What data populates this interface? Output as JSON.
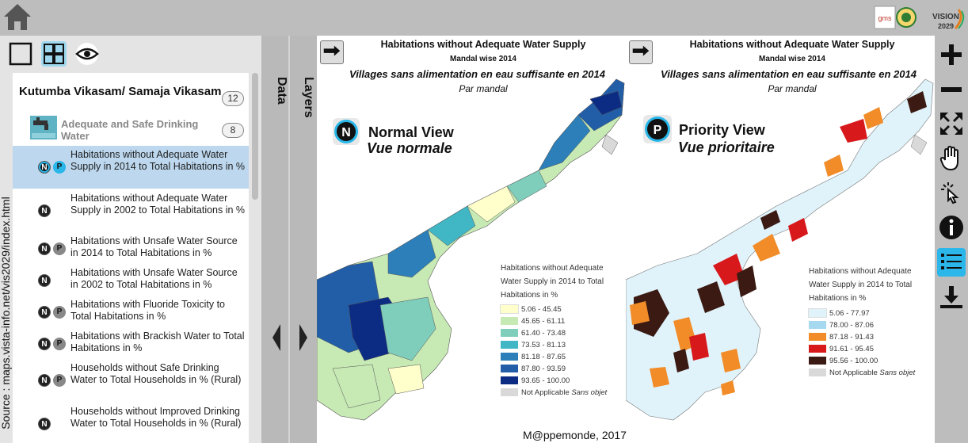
{
  "source_credit": "Source : maps.vista-info.net/vis2029/index.html",
  "logos": {
    "gms_text": "gms",
    "vision_text": "VISION",
    "vision_year": "2029"
  },
  "tabs": {
    "data": "Data",
    "layers": "Layers"
  },
  "group": {
    "title": "Kutumba Vikasam/ Samaja Vikasam",
    "count": "12"
  },
  "subgroup": {
    "title": "Adequate and Safe Drinking Water",
    "count": "8"
  },
  "items": [
    {
      "label": "Habitations without Adequate Water Supply in 2014 to Total Habitations in %",
      "badges": [
        "N",
        "P"
      ],
      "selected": true
    },
    {
      "label": "Habitations without Adequate Water Supply in 2002 to Total Habitations in %",
      "badges": [
        "N"
      ],
      "selected": false
    },
    {
      "label": "Habitations with Unsafe Water Source in 2014 to Total Habitations in %",
      "badges": [
        "N",
        "P"
      ],
      "selected": false
    },
    {
      "label": "Habitations with Unsafe Water Source in 2002 to Total Habitations in %",
      "badges": [
        "N"
      ],
      "selected": false
    },
    {
      "label": "Habitations with Fluoride Toxicity to Total Habitations in %",
      "badges": [
        "N",
        "P"
      ],
      "selected": false
    },
    {
      "label": "Habitations with Brackish Water to Total Habitations in %",
      "badges": [
        "N",
        "P"
      ],
      "selected": false
    },
    {
      "label": "Households without Safe Drinking Water to Total Households in % (Rural)",
      "badges": [
        "N",
        "P"
      ],
      "selected": false
    },
    {
      "label": "Households without Improved Drinking Water to Total Households in % (Rural)",
      "badges": [
        "N"
      ],
      "selected": false
    }
  ],
  "map": {
    "title_en": "Habitations without Adequate Water Supply",
    "subtitle_en": "Mandal wise 2014",
    "title_fr": "Villages sans alimentation en eau suffisante  en 2014",
    "subtitle_fr": "Par mandal",
    "credit": "M@ppemonde, 2017",
    "normal": {
      "badge": "N",
      "label_en": "Normal View",
      "label_fr": "Vue normale",
      "legend_title_lines": [
        "Habitations without Adequate",
        "Water Supply in 2014 to Total",
        "Habitations in %"
      ],
      "legend": [
        {
          "range": "5.06 - 45.45",
          "color": "#ffffcc"
        },
        {
          "range": "45.65 - 61.11",
          "color": "#c7e9b4"
        },
        {
          "range": "61.40 - 73.48",
          "color": "#7fcdbb"
        },
        {
          "range": "73.53 - 81.13",
          "color": "#41b6c4"
        },
        {
          "range": "81.18 - 87.65",
          "color": "#2c7fb8"
        },
        {
          "range": "87.80 - 93.59",
          "color": "#225ea8"
        },
        {
          "range": "93.65 - 100.00",
          "color": "#0c2c84"
        }
      ],
      "na_en": "Not Applicable",
      "na_fr": "Sans objet",
      "na_color": "#d9d9d9"
    },
    "priority": {
      "badge": "P",
      "label_en": "Priority View",
      "label_fr": "Vue prioritaire",
      "legend_title_lines": [
        "Habitations without Adequate",
        "Water Supply in 2014 to Total",
        "Habitations in %"
      ],
      "legend": [
        {
          "range": "5.06 - 77.97",
          "color": "#e0f3fb"
        },
        {
          "range": "78.00 - 87.06",
          "color": "#a6d8f0"
        },
        {
          "range": "87.18 - 91.43",
          "color": "#f28c28"
        },
        {
          "range": "91.61 - 95.45",
          "color": "#d7191c"
        },
        {
          "range": "95.56 - 100.00",
          "color": "#3a1a12"
        }
      ],
      "na_en": "Not Applicable",
      "na_fr": "Sans objet",
      "na_color": "#d9d9d9"
    }
  }
}
